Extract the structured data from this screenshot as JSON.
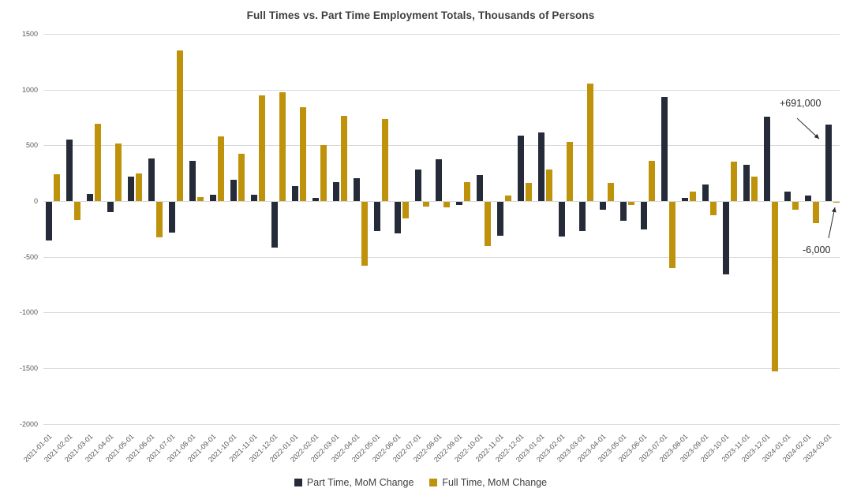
{
  "chart_data": {
    "type": "bar",
    "title": "Full Times vs. Part Time Employment Totals, Thousands of Persons",
    "categories": [
      "2021-01-01",
      "2021-02-01",
      "2021-03-01",
      "2021-04-01",
      "2021-05-01",
      "2021-06-01",
      "2021-07-01",
      "2021-08-01",
      "2021-09-01",
      "2021-10-01",
      "2021-11-01",
      "2021-12-01",
      "2022-01-01",
      "2022-02-01",
      "2022-03-01",
      "2022-04-01",
      "2022-05-01",
      "2022-06-01",
      "2022-07-01",
      "2022-08-01",
      "2022-09-01",
      "2022-10-01",
      "2022-11-01",
      "2022-12-01",
      "2023-01-01",
      "2023-02-01",
      "2023-03-01",
      "2023-04-01",
      "2023-05-01",
      "2023-06-01",
      "2023-07-01",
      "2023-08-01",
      "2023-09-01",
      "2023-10-01",
      "2023-11-01",
      "2023-12-01",
      "2024-01-01",
      "2024-02-01",
      "2024-03-01"
    ],
    "series": [
      {
        "name": "Part Time, MoM Change",
        "color": "#252B38",
        "values": [
          -352,
          552,
          66,
          -92,
          225,
          387,
          -281,
          365,
          61,
          193,
          60,
          -417,
          140,
          30,
          170,
          209,
          -263,
          -285,
          287,
          381,
          -35,
          240,
          -309,
          588,
          620,
          -313,
          -266,
          -75,
          -175,
          -250,
          934,
          32,
          151,
          -653,
          330,
          762,
          90,
          55,
          691
        ]
      },
      {
        "name": "Full Time, MoM Change",
        "color": "#BF920B",
        "values": [
          243,
          -165,
          693,
          521,
          250,
          -323,
          1351,
          40,
          585,
          429,
          948,
          976,
          845,
          505,
          768,
          -575,
          742,
          -150,
          -45,
          -52,
          175,
          -400,
          55,
          163,
          288,
          536,
          1060,
          165,
          -30,
          365,
          -595,
          85,
          -123,
          356,
          222,
          -1527,
          -71,
          -195,
          -6
        ]
      }
    ],
    "ylim": [
      -2000,
      1500
    ],
    "yticks": [
      1500,
      1000,
      500,
      0,
      -500,
      -1000,
      -1500,
      -2000
    ],
    "grid": "horizontal",
    "legend_position": "bottom",
    "annotations": [
      {
        "text": "+691,000",
        "points_to": "2024-03-01 Part Time bar"
      },
      {
        "text": "-6,000",
        "points_to": "2024-03-01 Full Time bar"
      }
    ]
  }
}
